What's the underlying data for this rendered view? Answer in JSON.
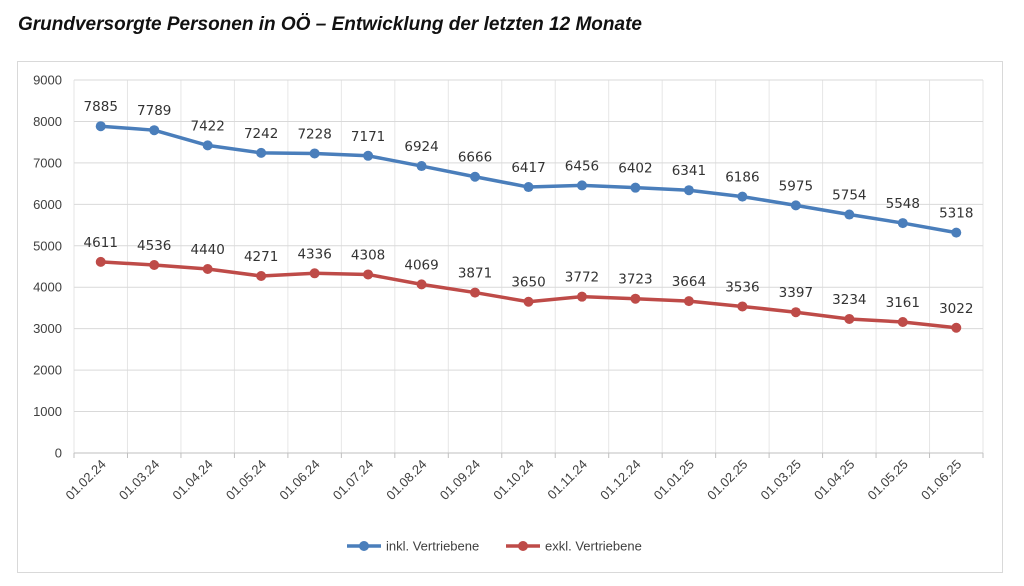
{
  "title": "Grundversorgte Personen in OÖ – Entwicklung der letzten 12 Monate",
  "chart_data": {
    "type": "line",
    "title": "Grundversorgte Personen in OÖ – Entwicklung der letzten 12 Monate",
    "x": [
      "01.02.24",
      "01.03.24",
      "01.04.24",
      "01.05.24",
      "01.06.24",
      "01.07.24",
      "01.08.24",
      "01.09.24",
      "01.10.24",
      "01.11.24",
      "01.12.24",
      "01.01.25",
      "01.02.25",
      "01.03.25",
      "01.04.25",
      "01.05.25",
      "01.06.25"
    ],
    "series": [
      {
        "name": "inkl. Vertriebene",
        "color": "#4a7ebb",
        "values": [
          7885,
          7789,
          7422,
          7242,
          7228,
          7171,
          6924,
          6666,
          6417,
          6456,
          6402,
          6341,
          6186,
          5975,
          5754,
          5548,
          5318
        ]
      },
      {
        "name": "exkl. Vertriebene",
        "color": "#be4b48",
        "values": [
          4611,
          4536,
          4440,
          4271,
          4336,
          4308,
          4069,
          3871,
          3650,
          3772,
          3723,
          3664,
          3536,
          3397,
          3234,
          3161,
          3022
        ]
      }
    ],
    "ylim": [
      0,
      9000
    ],
    "yticks": [
      0,
      1000,
      2000,
      3000,
      4000,
      5000,
      6000,
      7000,
      8000,
      9000
    ],
    "grid": true,
    "legend": "bottom"
  }
}
